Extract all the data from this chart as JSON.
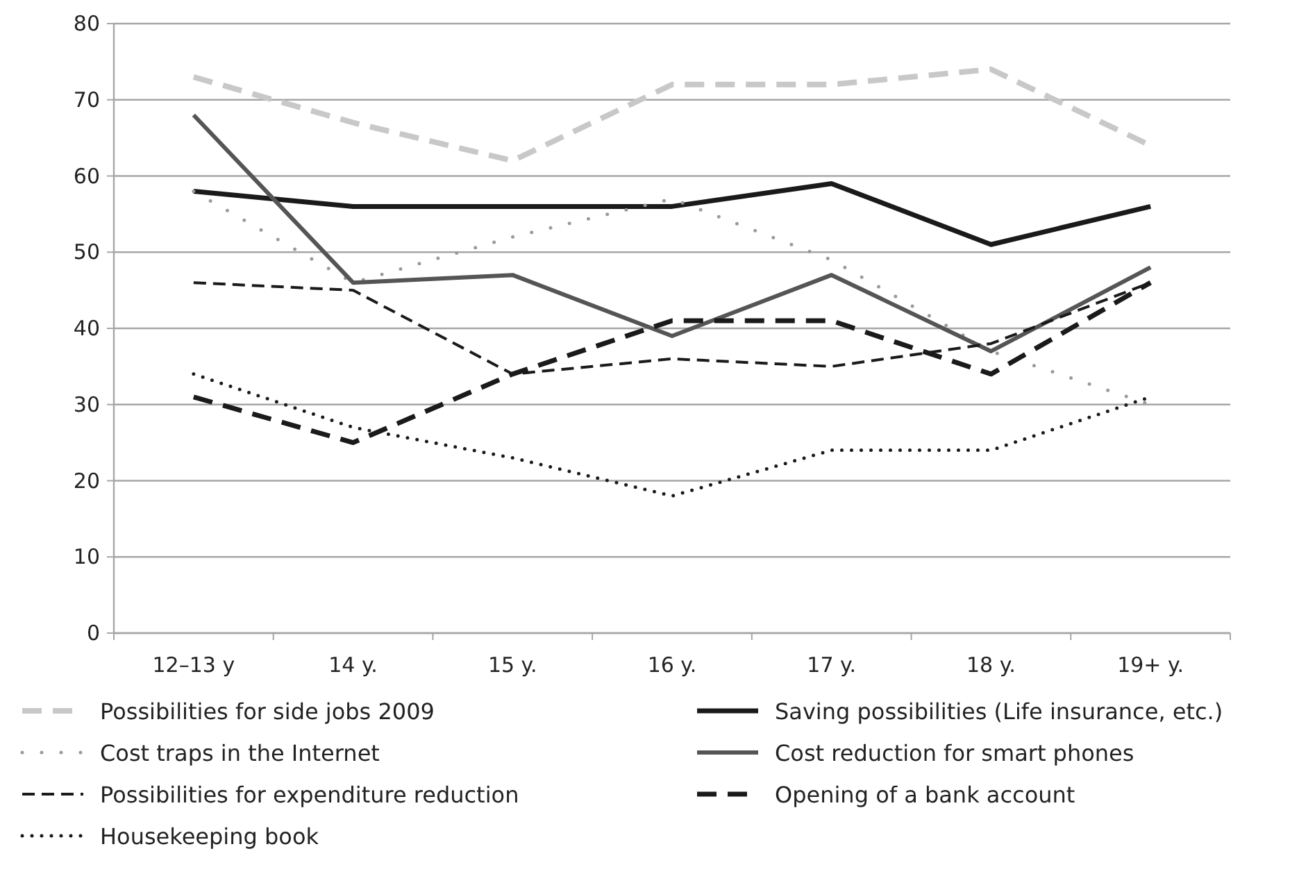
{
  "chart_data": {
    "type": "line",
    "categories": [
      "12–13 y",
      "14 y.",
      "15 y.",
      "16 y.",
      "17 y.",
      "18 y.",
      "19+ y."
    ],
    "ylim": [
      0,
      80
    ],
    "yticks": [
      0,
      10,
      20,
      30,
      40,
      50,
      60,
      70,
      80
    ],
    "grid": "y",
    "legend": "bottom",
    "marker": "none",
    "series": [
      {
        "name": "Possibilities for side jobs 2009",
        "color": "#c8c8c8",
        "line_style": "dashed",
        "values": [
          73,
          67,
          62,
          72,
          72,
          74,
          64
        ]
      },
      {
        "name": "Saving possibilities (Life insurance, etc.)",
        "color": "#1a1a1a",
        "line_style": "solid",
        "values": [
          58,
          56,
          56,
          56,
          59,
          51,
          56
        ]
      },
      {
        "name": "Cost traps in the Internet",
        "color": "#9a9a9a",
        "line_style": "dotted",
        "values": [
          58,
          46,
          52,
          57,
          49,
          37,
          30
        ]
      },
      {
        "name": "Cost reduction for smart phones",
        "color": "#555555",
        "line_style": "solid",
        "values": [
          68,
          46,
          47,
          39,
          47,
          37,
          48
        ]
      },
      {
        "name": "Possibilities for expenditure reduction",
        "color": "#1a1a1a",
        "line_style": "dashed",
        "values": [
          46,
          45,
          34,
          36,
          35,
          38,
          46
        ]
      },
      {
        "name": "Opening of a bank account",
        "color": "#1a1a1a",
        "line_style": "dashed",
        "values": [
          31,
          25,
          34,
          41,
          41,
          34,
          46
        ]
      },
      {
        "name": "Housekeeping book",
        "color": "#1a1a1a",
        "line_style": "dotted",
        "values": [
          34,
          27,
          23,
          18,
          24,
          24,
          31
        ]
      }
    ]
  }
}
